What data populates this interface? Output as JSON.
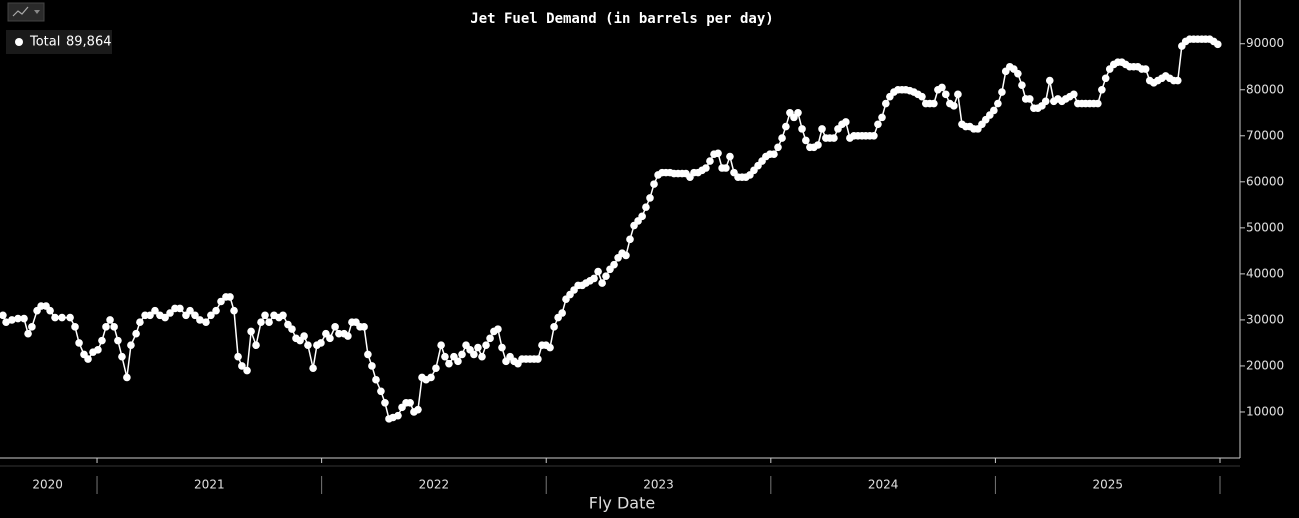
{
  "chart_data": {
    "type": "line",
    "title": "Jet Fuel Demand (in barrels per day)",
    "x_label": "Fly Date",
    "xlim": [
      2020.568,
      2026.089
    ],
    "xticks": [
      {
        "value": 2020.78,
        "label": "2020"
      },
      {
        "value": 2021.5,
        "label": "2021"
      },
      {
        "value": 2022.5,
        "label": "2022"
      },
      {
        "value": 2023.5,
        "label": "2023"
      },
      {
        "value": 2024.5,
        "label": "2024"
      },
      {
        "value": 2025.5,
        "label": "2025"
      }
    ],
    "ylim": [
      0,
      99500
    ],
    "yticks": [
      10000,
      20000,
      30000,
      40000,
      50000,
      60000,
      70000,
      80000,
      90000
    ],
    "x": [
      2020.581,
      2020.595,
      2020.621,
      2020.648,
      2020.675,
      2020.693,
      2020.71,
      2020.733,
      2020.751,
      2020.773,
      2020.791,
      2020.813,
      2020.844,
      2020.88,
      2020.902,
      2020.92,
      2020.942,
      2020.96,
      2020.982,
      2021.004,
      2021.022,
      2021.04,
      2021.058,
      2021.076,
      2021.093,
      2021.111,
      2021.133,
      2021.151,
      2021.174,
      2021.191,
      2021.214,
      2021.236,
      2021.258,
      2021.28,
      2021.303,
      2021.325,
      2021.347,
      2021.369,
      2021.396,
      2021.414,
      2021.436,
      2021.458,
      2021.485,
      2021.507,
      2021.53,
      2021.552,
      2021.574,
      2021.592,
      2021.61,
      2021.628,
      2021.645,
      2021.668,
      2021.686,
      2021.708,
      2021.73,
      2021.748,
      2021.766,
      2021.788,
      2021.81,
      2021.828,
      2021.85,
      2021.868,
      2021.886,
      2021.904,
      2021.922,
      2021.939,
      2021.962,
      2021.979,
      2021.997,
      2022.019,
      2022.037,
      2022.06,
      2022.077,
      2022.1,
      2022.117,
      2022.135,
      2022.153,
      2022.171,
      2022.189,
      2022.206,
      2022.224,
      2022.242,
      2022.264,
      2022.282,
      2022.3,
      2022.318,
      2022.34,
      2022.358,
      2022.376,
      2022.394,
      2022.411,
      2022.429,
      2022.447,
      2022.465,
      2022.487,
      2022.509,
      2022.532,
      2022.549,
      2022.567,
      2022.589,
      2022.607,
      2022.625,
      2022.643,
      2022.661,
      2022.678,
      2022.696,
      2022.714,
      2022.732,
      2022.75,
      2022.767,
      2022.785,
      2022.803,
      2022.821,
      2022.839,
      2022.857,
      2022.874,
      2022.892,
      2022.91,
      2022.928,
      2022.946,
      2022.963,
      2022.981,
      2022.999,
      2023.017,
      2023.035,
      2023.053,
      2023.071,
      2023.088,
      2023.106,
      2023.124,
      2023.142,
      2023.16,
      2023.177,
      2023.195,
      2023.213,
      2023.231,
      2023.249,
      2023.266,
      2023.284,
      2023.302,
      2023.32,
      2023.338,
      2023.355,
      2023.373,
      2023.391,
      2023.409,
      2023.427,
      2023.444,
      2023.462,
      2023.48,
      2023.498,
      2023.516,
      2023.533,
      2023.551,
      2023.569,
      2023.587,
      2023.605,
      2023.622,
      2023.64,
      2023.658,
      2023.676,
      2023.694,
      2023.711,
      2023.729,
      2023.747,
      2023.765,
      2023.783,
      2023.8,
      2023.818,
      2023.836,
      2023.854,
      2023.872,
      2023.889,
      2023.907,
      2023.925,
      2023.943,
      2023.961,
      2023.978,
      2023.996,
      2024.014,
      2024.032,
      2024.05,
      2024.067,
      2024.085,
      2024.103,
      2024.121,
      2024.139,
      2024.156,
      2024.174,
      2024.192,
      2024.21,
      2024.228,
      2024.245,
      2024.263,
      2024.281,
      2024.299,
      2024.317,
      2024.334,
      2024.352,
      2024.37,
      2024.388,
      2024.406,
      2024.423,
      2024.441,
      2024.459,
      2024.477,
      2024.495,
      2024.512,
      2024.53,
      2024.548,
      2024.566,
      2024.584,
      2024.601,
      2024.619,
      2024.637,
      2024.655,
      2024.673,
      2024.69,
      2024.708,
      2024.726,
      2024.744,
      2024.762,
      2024.779,
      2024.797,
      2024.815,
      2024.833,
      2024.851,
      2024.868,
      2024.886,
      2024.904,
      2024.922,
      2024.94,
      2024.957,
      2024.975,
      2024.993,
      2025.011,
      2025.029,
      2025.046,
      2025.064,
      2025.082,
      2025.1,
      2025.118,
      2025.135,
      2025.153,
      2025.171,
      2025.189,
      2025.207,
      2025.224,
      2025.242,
      2025.26,
      2025.278,
      2025.296,
      2025.313,
      2025.331,
      2025.349,
      2025.367,
      2025.385,
      2025.402,
      2025.42,
      2025.438,
      2025.456,
      2025.474,
      2025.491,
      2025.509,
      2025.527,
      2025.545,
      2025.563,
      2025.58,
      2025.598,
      2025.616,
      2025.634,
      2025.652,
      2025.669,
      2025.687,
      2025.705,
      2025.723,
      2025.741,
      2025.758,
      2025.776,
      2025.794,
      2025.812,
      2025.83,
      2025.847,
      2025.865,
      2025.883,
      2025.901,
      2025.919,
      2025.936,
      2025.954,
      2025.972,
      2025.99
    ],
    "series": [
      {
        "name": "Total",
        "color": "#ffffff",
        "legend_value_label": "89,864",
        "values": [
          31000,
          29500,
          30000,
          30300,
          30300,
          27000,
          28500,
          32000,
          33000,
          33000,
          32000,
          30500,
          30500,
          30500,
          28500,
          25000,
          22500,
          21500,
          23000,
          23500,
          25500,
          28500,
          30000,
          28500,
          25500,
          22000,
          17500,
          24500,
          27000,
          29500,
          31000,
          31000,
          32000,
          31000,
          30500,
          31500,
          32500,
          32500,
          31000,
          32000,
          31000,
          30000,
          29500,
          31000,
          32000,
          34000,
          35000,
          35000,
          32000,
          22000,
          20000,
          19000,
          27500,
          24500,
          29500,
          31000,
          29500,
          31000,
          30500,
          31000,
          29000,
          28000,
          26000,
          25500,
          26500,
          24500,
          19500,
          24500,
          25000,
          27000,
          26000,
          28500,
          27000,
          27000,
          26500,
          29500,
          29500,
          28500,
          28500,
          22500,
          20000,
          17000,
          14500,
          12000,
          8500,
          8800,
          9200,
          11000,
          12000,
          12000,
          10000,
          10500,
          17500,
          17000,
          17500,
          19500,
          24500,
          22000,
          20500,
          22000,
          21000,
          22500,
          24500,
          23500,
          22500,
          24000,
          22000,
          24500,
          26000,
          27500,
          28000,
          24000,
          21000,
          22000,
          21000,
          20500,
          21500,
          21500,
          21500,
          21500,
          21500,
          24500,
          24500,
          24000,
          28500,
          30500,
          31500,
          34500,
          35500,
          36500,
          37500,
          37500,
          38000,
          38500,
          39000,
          40500,
          38000,
          39500,
          41000,
          42000,
          43500,
          44500,
          44000,
          47500,
          50500,
          51500,
          52500,
          54500,
          56500,
          59500,
          61500,
          62000,
          62000,
          62000,
          61800,
          61800,
          61800,
          61800,
          61000,
          62000,
          62000,
          62500,
          63000,
          64500,
          66000,
          66200,
          63000,
          63000,
          65500,
          62000,
          61000,
          61000,
          61000,
          61500,
          62500,
          63500,
          64500,
          65500,
          66000,
          66000,
          67500,
          69500,
          72000,
          75000,
          74000,
          75000,
          71500,
          69000,
          67500,
          67500,
          68000,
          71500,
          69500,
          69500,
          69500,
          71500,
          72500,
          73000,
          69500,
          70000,
          70000,
          70000,
          70000,
          70000,
          70000,
          72500,
          74000,
          77000,
          78500,
          79500,
          80000,
          80000,
          80000,
          79800,
          79500,
          79000,
          78500,
          77000,
          77000,
          77000,
          80000,
          80500,
          79000,
          77000,
          76500,
          79000,
          72500,
          72000,
          72000,
          71500,
          71500,
          72500,
          73500,
          74500,
          75500,
          77000,
          79500,
          84000,
          85000,
          84500,
          83500,
          81000,
          78000,
          78000,
          76000,
          76000,
          76500,
          77500,
          82000,
          77500,
          78000,
          77500,
          78000,
          78500,
          79000,
          77000,
          77000,
          77000,
          77000,
          77000,
          77000,
          80000,
          82500,
          84500,
          85500,
          86000,
          86000,
          85500,
          85000,
          85000,
          85000,
          84500,
          84500,
          82000,
          81500,
          82000,
          82500,
          83000,
          82500,
          82000,
          82000,
          89500,
          90500,
          91000,
          91000,
          91000,
          91000,
          91000,
          91000,
          90500,
          89864
        ]
      }
    ]
  }
}
